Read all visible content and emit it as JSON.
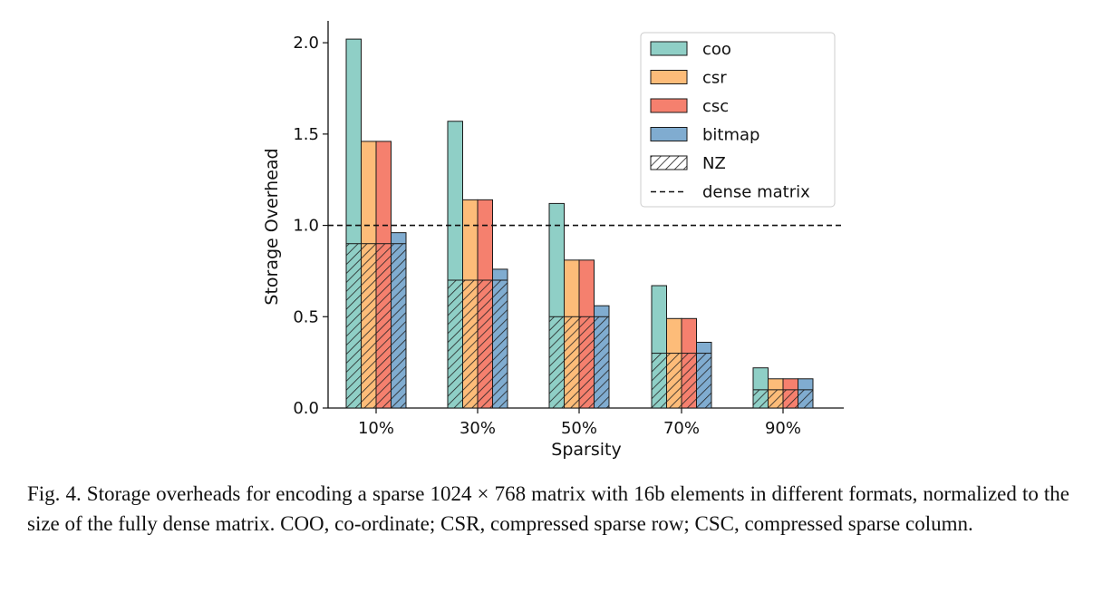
{
  "chart_data": {
    "type": "bar",
    "title": "",
    "xlabel": "Sparsity",
    "ylabel": "Storage Overhead",
    "categories": [
      "10%",
      "30%",
      "50%",
      "70%",
      "90%"
    ],
    "ylim": [
      0,
      2.1
    ],
    "yticks": [
      "0.0",
      "0.5",
      "1.0",
      "1.5",
      "2.0"
    ],
    "series": [
      {
        "name": "coo",
        "color": "#8fcfc6",
        "values": [
          2.02,
          1.57,
          1.12,
          0.67,
          0.22
        ]
      },
      {
        "name": "csr",
        "color": "#fdbc79",
        "values": [
          1.46,
          1.14,
          0.81,
          0.49,
          0.16
        ]
      },
      {
        "name": "csc",
        "color": "#f5806e",
        "values": [
          1.46,
          1.14,
          0.81,
          0.49,
          0.16
        ]
      },
      {
        "name": "bitmap",
        "color": "#80acd0",
        "values": [
          0.96,
          0.76,
          0.56,
          0.36,
          0.16
        ]
      }
    ],
    "nz": {
      "name": "NZ",
      "values": [
        0.9,
        0.7,
        0.5,
        0.3,
        0.1
      ]
    },
    "reference_line": {
      "name": "dense matrix",
      "value": 1.0,
      "style": "dashed"
    },
    "legend_position": "top-right",
    "grid": false
  },
  "caption": "Fig. 4.  Storage overheads for encoding a sparse 1024 × 768 matrix with 16b elements in different formats, normalized to the size of the fully dense matrix. COO, co-ordinate; CSR, compressed sparse row; CSC, compressed sparse column."
}
